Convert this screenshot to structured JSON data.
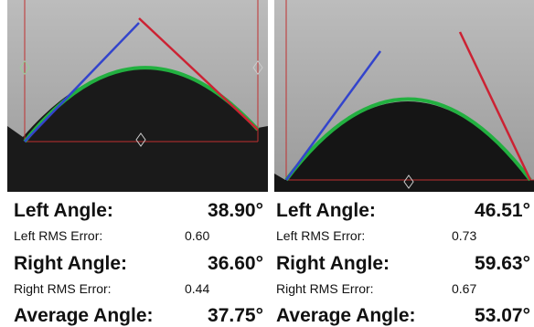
{
  "panels": [
    {
      "left_angle": {
        "label": "Left Angle:",
        "value": "38.90°"
      },
      "left_rms": {
        "label": "Left RMS Error:",
        "value": "0.60"
      },
      "right_angle": {
        "label": "Right Angle:",
        "value": "36.60°"
      },
      "right_rms": {
        "label": "Right RMS Error:",
        "value": "0.44"
      },
      "average_angle": {
        "label": "Average Angle:",
        "value": "37.75°"
      }
    },
    {
      "left_angle": {
        "label": "Left Angle:",
        "value": "46.51°"
      },
      "left_rms": {
        "label": "Left RMS Error:",
        "value": "0.73"
      },
      "right_angle": {
        "label": "Right Angle:",
        "value": "59.63°"
      },
      "right_rms": {
        "label": "Right RMS Error:",
        "value": "0.67"
      },
      "average_angle": {
        "label": "Average Angle:",
        "value": "53.07°"
      }
    }
  ]
}
